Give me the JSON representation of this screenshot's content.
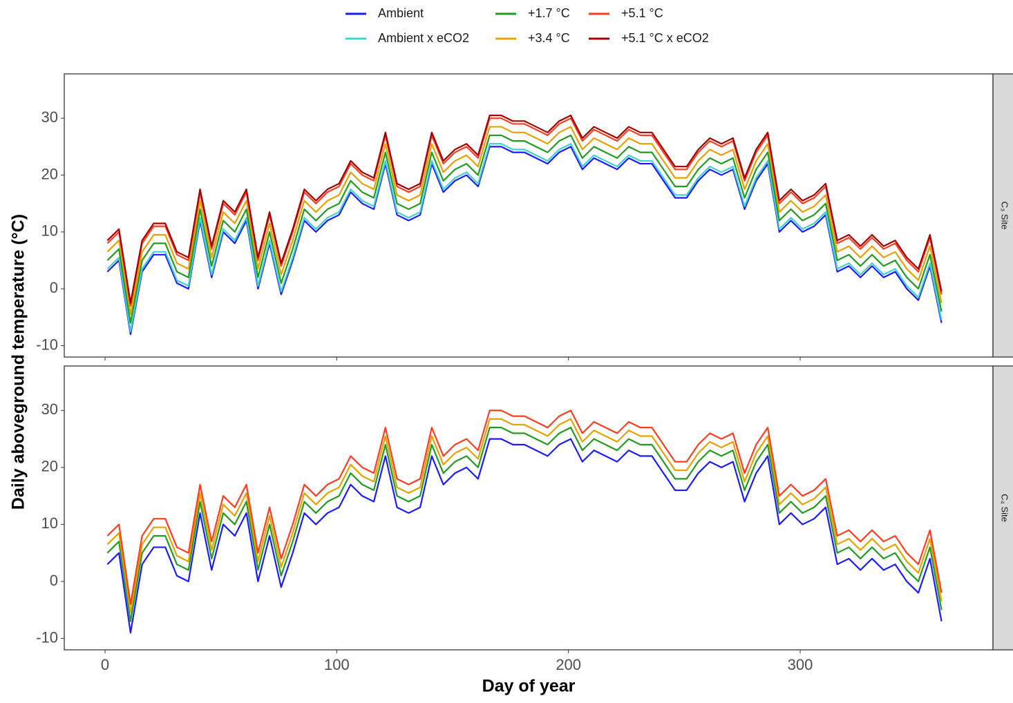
{
  "chart_data": {
    "type": "line",
    "xlabel": "Day of year",
    "ylabel": "Daily aboveground temperature (°C)",
    "xlim": [
      -17.6,
      383.2
    ],
    "xticks": [
      0,
      100,
      200,
      300
    ],
    "ylim": [
      -12,
      37.8
    ],
    "yticks": [
      -10,
      0,
      10,
      20,
      30
    ],
    "x": [
      1,
      6,
      11,
      16,
      21,
      26,
      31,
      36,
      41,
      46,
      51,
      56,
      61,
      66,
      71,
      76,
      81,
      86,
      91,
      96,
      101,
      106,
      111,
      116,
      121,
      126,
      131,
      136,
      141,
      146,
      151,
      156,
      161,
      166,
      171,
      176,
      181,
      186,
      191,
      196,
      201,
      206,
      211,
      216,
      221,
      226,
      231,
      236,
      241,
      246,
      251,
      256,
      261,
      266,
      271,
      276,
      281,
      286,
      291,
      296,
      301,
      306,
      311,
      316,
      321,
      326,
      331,
      336,
      341,
      346,
      351,
      356,
      361
    ],
    "panels": [
      {
        "label": "C₃ Site",
        "series": [
          {
            "name": "Ambient",
            "color": "#1a1aff",
            "values": [
              3,
              5,
              -8,
              3,
              6,
              6,
              1,
              0,
              12,
              2,
              10,
              8,
              12,
              0,
              8,
              -1,
              5,
              12,
              10,
              12,
              13,
              17,
              15,
              14,
              22,
              13,
              12,
              13,
              22,
              17,
              19,
              20,
              18,
              25,
              25,
              24,
              24,
              23,
              22,
              24,
              25,
              21,
              23,
              22,
              21,
              23,
              22,
              22,
              19,
              16,
              16,
              19,
              21,
              20,
              21,
              14,
              19,
              22,
              10,
              12,
              10,
              11,
              13,
              3,
              4,
              2,
              4,
              2,
              3,
              0,
              -2,
              4,
              -6
            ]
          },
          {
            "name": "Ambient x eCO2",
            "color": "#40d0d0",
            "values": [
              3.5,
              5.5,
              -7.5,
              3.5,
              6.5,
              6.5,
              1.5,
              0.5,
              12.5,
              2.5,
              10.5,
              8.5,
              12.5,
              0.5,
              8.5,
              -0.5,
              5.5,
              12.5,
              10.5,
              12.5,
              13.5,
              17.5,
              15.5,
              14.5,
              22.5,
              13.5,
              12.5,
              13.5,
              22.5,
              17.5,
              19.5,
              20.5,
              18.5,
              25.5,
              25.5,
              24.5,
              24.5,
              23.5,
              22.5,
              24.5,
              25.5,
              21.5,
              23.5,
              22.5,
              21.5,
              23.5,
              22.5,
              22.5,
              19.5,
              16.5,
              16.5,
              19.5,
              21.5,
              20.5,
              21.5,
              14.5,
              19.5,
              22.5,
              10.5,
              12.5,
              10.5,
              11.5,
              13.5,
              3.5,
              4.5,
              2.5,
              4.5,
              2.5,
              3.5,
              0.5,
              -1.5,
              4.5,
              -5.5
            ]
          },
          {
            "name": "+1.7 °C",
            "color": "#1f9b1f",
            "values": [
              5,
              7,
              -6,
              5,
              8,
              8,
              3,
              2,
              14,
              4,
              12,
              10,
              14,
              2,
              10,
              1,
              7,
              14,
              12,
              14,
              15,
              19,
              17,
              16,
              24,
              15,
              14,
              15,
              24,
              19,
              21,
              22,
              20,
              27,
              27,
              26,
              26,
              25,
              24,
              26,
              27,
              23,
              25,
              24,
              23,
              25,
              24,
              24,
              21,
              18,
              18,
              21,
              23,
              22,
              23,
              16,
              21,
              24,
              12,
              14,
              12,
              13,
              15,
              5,
              6,
              4,
              6,
              4,
              5,
              2,
              0,
              6,
              -4
            ]
          },
          {
            "name": "+3.4 °C",
            "color": "#e6a000",
            "values": [
              6.5,
              8.5,
              -4.5,
              6.5,
              9.5,
              9.5,
              4.5,
              3.5,
              15.5,
              5.5,
              13.5,
              11.5,
              15.5,
              3.5,
              11.5,
              2.5,
              8.5,
              15.5,
              13.5,
              15.5,
              16.5,
              20.5,
              18.5,
              17.5,
              25.5,
              16.5,
              15.5,
              16.5,
              25.5,
              20.5,
              22.5,
              23.5,
              21.5,
              28.5,
              28.5,
              27.5,
              27.5,
              26.5,
              25.5,
              27.5,
              28.5,
              24.5,
              26.5,
              25.5,
              24.5,
              26.5,
              25.5,
              25.5,
              22.5,
              19.5,
              19.5,
              22.5,
              24.5,
              23.5,
              24.5,
              17.5,
              22.5,
              25.5,
              13.5,
              15.5,
              13.5,
              14.5,
              16.5,
              6.5,
              7.5,
              5.5,
              7.5,
              5.5,
              6.5,
              3.5,
              1.5,
              7.5,
              -2.5
            ]
          },
          {
            "name": "+5.1 °C",
            "color": "#ff3b1f",
            "values": [
              8,
              10,
              -3,
              8,
              11,
              11,
              6,
              5,
              17,
              7,
              15,
              13,
              17,
              5,
              13,
              4,
              10,
              17,
              15,
              17,
              18,
              22,
              20,
              19,
              27,
              18,
              17,
              18,
              27,
              22,
              24,
              25,
              23,
              30,
              30,
              29,
              29,
              28,
              27,
              29,
              30,
              26,
              28,
              27,
              26,
              28,
              27,
              27,
              24,
              21,
              21,
              24,
              26,
              25,
              26,
              19,
              24,
              27,
              15,
              17,
              15,
              16,
              18,
              8,
              9,
              7,
              9,
              7,
              8,
              5,
              3,
              9,
              -1
            ]
          },
          {
            "name": "+5.1 °C x eCO2",
            "color": "#a00000",
            "values": [
              8.5,
              10.5,
              -2.5,
              8.5,
              11.5,
              11.5,
              6.5,
              5.5,
              17.5,
              7.5,
              15.5,
              13.5,
              17.5,
              5.5,
              13.5,
              4.5,
              10.5,
              17.5,
              15.5,
              17.5,
              18.5,
              22.5,
              20.5,
              19.5,
              27.5,
              18.5,
              17.5,
              18.5,
              27.5,
              22.5,
              24.5,
              25.5,
              23.5,
              30.5,
              30.5,
              29.5,
              29.5,
              28.5,
              27.5,
              29.5,
              30.5,
              26.5,
              28.5,
              27.5,
              26.5,
              28.5,
              27.5,
              27.5,
              24.5,
              21.5,
              21.5,
              24.5,
              26.5,
              25.5,
              26.5,
              19.5,
              24.5,
              27.5,
              15.5,
              17.5,
              15.5,
              16.5,
              18.5,
              8.5,
              9.5,
              7.5,
              9.5,
              7.5,
              8.5,
              5.5,
              3.5,
              9.5,
              -0.5
            ]
          }
        ]
      },
      {
        "label": "C₄ Site",
        "series": [
          {
            "color": "#1a1aff",
            "values": [
              3,
              5,
              -9,
              3,
              6,
              6,
              1,
              0,
              12,
              2,
              10,
              8,
              12,
              0,
              8,
              -1,
              5,
              12,
              10,
              12,
              13,
              17,
              15,
              14,
              22,
              13,
              12,
              13,
              22,
              17,
              19,
              20,
              18,
              25,
              25,
              24,
              24,
              23,
              22,
              24,
              25,
              21,
              23,
              22,
              21,
              23,
              22,
              22,
              19,
              16,
              16,
              19,
              21,
              20,
              21,
              14,
              19,
              22,
              10,
              12,
              10,
              11,
              13,
              3,
              4,
              2,
              4,
              2,
              3,
              0,
              -2,
              4,
              -7
            ]
          },
          {
            "color": "#1f9b1f",
            "values": [
              5,
              7,
              -7,
              5,
              8,
              8,
              3,
              2,
              14,
              4,
              12,
              10,
              14,
              2,
              10,
              1,
              7,
              14,
              12,
              14,
              15,
              19,
              17,
              16,
              24,
              15,
              14,
              15,
              24,
              19,
              21,
              22,
              20,
              27,
              27,
              26,
              26,
              25,
              24,
              26,
              27,
              23,
              25,
              24,
              23,
              25,
              24,
              24,
              21,
              18,
              18,
              21,
              23,
              22,
              23,
              16,
              21,
              24,
              12,
              14,
              12,
              13,
              15,
              5,
              6,
              4,
              6,
              4,
              5,
              2,
              0,
              6,
              -5
            ]
          },
          {
            "color": "#e6a000",
            "values": [
              6.5,
              8.5,
              -5.5,
              6.5,
              9.5,
              9.5,
              4.5,
              3.5,
              15.5,
              5.5,
              13.5,
              11.5,
              15.5,
              3.5,
              11.5,
              2.5,
              8.5,
              15.5,
              13.5,
              15.5,
              16.5,
              20.5,
              18.5,
              17.5,
              25.5,
              16.5,
              15.5,
              16.5,
              25.5,
              20.5,
              22.5,
              23.5,
              21.5,
              28.5,
              28.5,
              27.5,
              27.5,
              26.5,
              25.5,
              27.5,
              28.5,
              24.5,
              26.5,
              25.5,
              24.5,
              26.5,
              25.5,
              25.5,
              22.5,
              19.5,
              19.5,
              22.5,
              24.5,
              23.5,
              24.5,
              17.5,
              22.5,
              25.5,
              13.5,
              15.5,
              13.5,
              14.5,
              16.5,
              6.5,
              7.5,
              5.5,
              7.5,
              5.5,
              6.5,
              3.5,
              1.5,
              7.5,
              -3.5
            ]
          },
          {
            "color": "#ff3b1f",
            "values": [
              8,
              10,
              -4,
              8,
              11,
              11,
              6,
              5,
              17,
              7,
              15,
              13,
              17,
              5,
              13,
              4,
              10,
              17,
              15,
              17,
              18,
              22,
              20,
              19,
              27,
              18,
              17,
              18,
              27,
              22,
              24,
              25,
              23,
              30,
              30,
              29,
              29,
              28,
              27,
              29,
              30,
              26,
              28,
              27,
              26,
              28,
              27,
              27,
              24,
              21,
              21,
              24,
              26,
              25,
              26,
              19,
              24,
              27,
              15,
              17,
              15,
              16,
              18,
              8,
              9,
              7,
              9,
              7,
              8,
              5,
              3,
              9,
              -2
            ]
          }
        ]
      }
    ]
  }
}
